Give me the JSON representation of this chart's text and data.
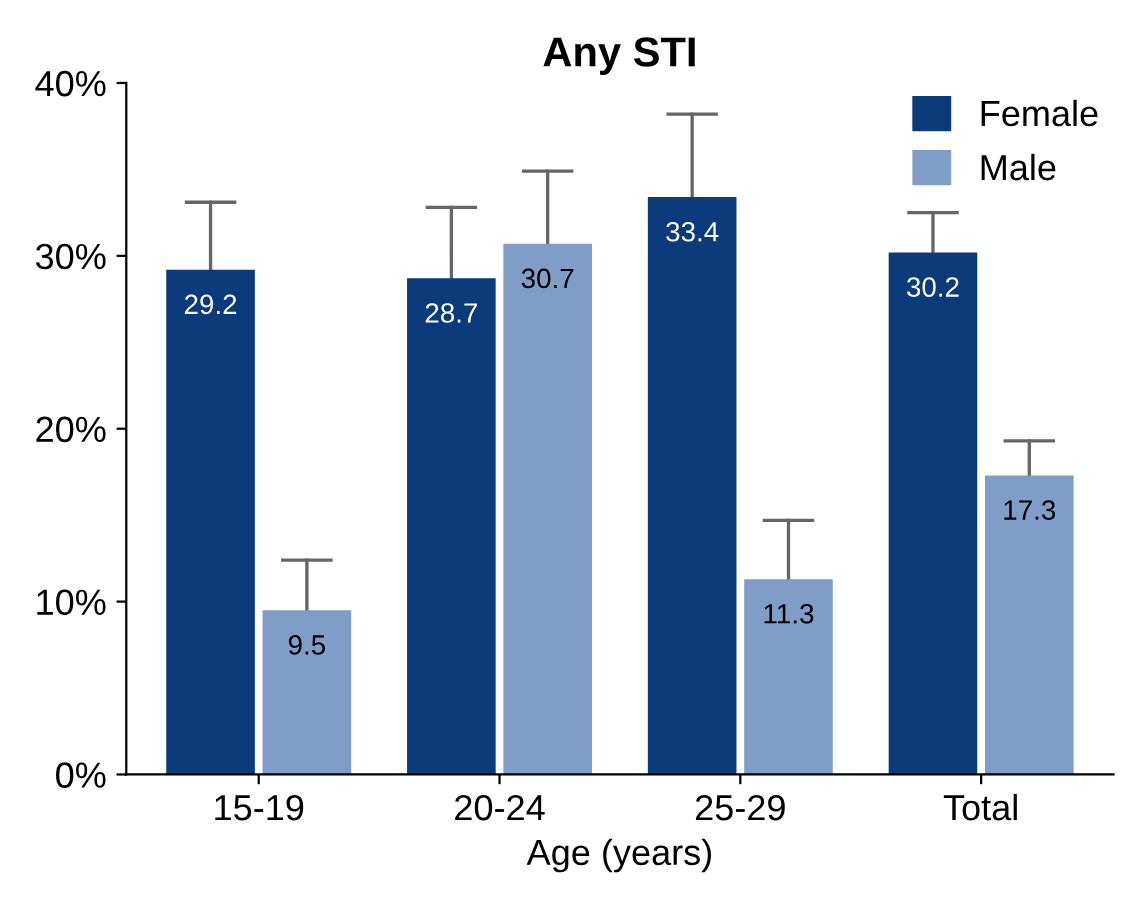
{
  "chart_data": {
    "type": "bar",
    "title": "Any STI",
    "xlabel": "Age (years)",
    "categories": [
      "15-19",
      "20-24",
      "25-29",
      "Total"
    ],
    "series": [
      {
        "name": "Female",
        "color": "#0c3b7c",
        "values": [
          29.2,
          28.7,
          33.4,
          30.2
        ],
        "errors": [
          [
            29.2,
            33.1
          ],
          [
            28.7,
            32.8
          ],
          [
            33.4,
            38.2
          ],
          [
            30.2,
            32.5
          ]
        ]
      },
      {
        "name": "Male",
        "color": "#7f9dc6",
        "values": [
          9.5,
          30.7,
          11.3,
          17.3
        ],
        "errors": [
          [
            9.5,
            12.4
          ],
          [
            30.7,
            34.9
          ],
          [
            11.3,
            14.7
          ],
          [
            17.3,
            19.3
          ]
        ]
      }
    ],
    "ylim": [
      0,
      40
    ],
    "yticks": [
      {
        "value": 0,
        "label": "0%"
      },
      {
        "value": 10,
        "label": "10%"
      },
      {
        "value": 20,
        "label": "20%"
      },
      {
        "value": 30,
        "label": "30%"
      },
      {
        "value": 40,
        "label": "40%"
      }
    ],
    "data_labels": true,
    "legend": "top right",
    "grid": false
  }
}
